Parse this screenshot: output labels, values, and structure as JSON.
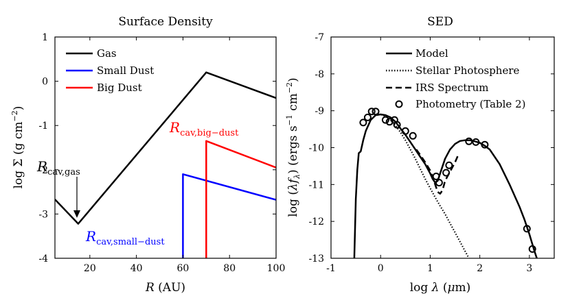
{
  "chart_data": [
    {
      "id": "surface",
      "type": "line",
      "title": "Surface Density",
      "xlabel": "R (AU)",
      "ylabel": "log Σ (g cm⁻²)",
      "xlim": [
        5,
        100
      ],
      "ylim": [
        -4,
        1
      ],
      "xticks": [
        20,
        40,
        60,
        80,
        100
      ],
      "yticks": [
        -4,
        -3,
        -2,
        -1,
        0,
        1
      ],
      "legend_position": "top-left",
      "series": [
        {
          "name": "Gas",
          "color": "#000000",
          "x": [
            5,
            15,
            70,
            100
          ],
          "y": [
            -2.67,
            -3.22,
            0.2,
            -0.38
          ]
        },
        {
          "name": "Small Dust",
          "color": "#0000ff",
          "x": [
            60,
            60,
            100
          ],
          "y": [
            -4,
            -2.1,
            -2.68
          ]
        },
        {
          "name": "Big Dust",
          "color": "#ff0000",
          "x": [
            70,
            70,
            100
          ],
          "y": [
            -4,
            -1.35,
            -1.95
          ]
        }
      ],
      "annotations": [
        {
          "main": "R",
          "sub": "cav,gas",
          "color": "#000000"
        },
        {
          "main": "R",
          "sub": "cav,big−dust",
          "color": "#ff0000"
        },
        {
          "main": "R",
          "sub": "cav,small−dust",
          "color": "#0000ff"
        }
      ]
    },
    {
      "id": "sed",
      "type": "line",
      "title": "SED",
      "xlabel": "log λ (μm)",
      "ylabel": "log (λf_λ) (ergs s⁻¹ cm⁻²)",
      "xlim": [
        -1,
        3.5
      ],
      "ylim": [
        -13,
        -7
      ],
      "xticks": [
        -1,
        0,
        1,
        2,
        3
      ],
      "yticks": [
        -13,
        -12,
        -11,
        -10,
        -9,
        -8,
        -7
      ],
      "legend_position": "top-right",
      "legend": [
        "Model",
        "Stellar Photosphere",
        "IRS Spectrum",
        "Photometry (Table 2)"
      ],
      "series": [
        {
          "name": "Model",
          "style": "solid",
          "x": [
            -0.53,
            -0.5,
            -0.47,
            -0.44,
            -0.4,
            -0.35,
            -0.3,
            -0.2,
            -0.1,
            0.0,
            0.1,
            0.2,
            0.3,
            0.4,
            0.5,
            0.6,
            0.7,
            0.8,
            0.9,
            1.0,
            1.05,
            1.1,
            1.15,
            1.2,
            1.3,
            1.4,
            1.5,
            1.6,
            1.7,
            1.8,
            1.9,
            2.0,
            2.1,
            2.2,
            2.4,
            2.6,
            2.8,
            2.9,
            3.0,
            3.1,
            3.15
          ],
          "y": [
            -13,
            -11.4,
            -10.6,
            -10.15,
            -10.1,
            -9.8,
            -9.55,
            -9.25,
            -9.12,
            -9.1,
            -9.12,
            -9.18,
            -9.3,
            -9.48,
            -9.65,
            -9.85,
            -10.05,
            -10.25,
            -10.45,
            -10.7,
            -10.85,
            -10.95,
            -10.9,
            -10.7,
            -10.3,
            -10.05,
            -9.9,
            -9.82,
            -9.8,
            -9.8,
            -9.83,
            -9.87,
            -9.95,
            -10.05,
            -10.45,
            -11.0,
            -11.6,
            -11.95,
            -12.35,
            -12.8,
            -13
          ]
        },
        {
          "name": "Stellar Photosphere",
          "style": "dotted",
          "x": [
            -0.1,
            0.0,
            0.1,
            0.2,
            0.3,
            0.4,
            0.5,
            0.6,
            0.7,
            0.8,
            0.9,
            1.0,
            1.1,
            1.2,
            1.3,
            1.4,
            1.5,
            1.6,
            1.7,
            1.78
          ],
          "y": [
            -9.1,
            -9.1,
            -9.15,
            -9.25,
            -9.4,
            -9.58,
            -9.8,
            -10.05,
            -10.3,
            -10.58,
            -10.85,
            -11.1,
            -11.35,
            -11.58,
            -11.8,
            -12.05,
            -12.3,
            -12.55,
            -12.8,
            -13
          ]
        },
        {
          "name": "IRS Spectrum",
          "style": "dashed",
          "x": [
            0.72,
            0.8,
            0.9,
            1.0,
            1.05,
            1.1,
            1.15,
            1.2,
            1.25,
            1.3,
            1.4,
            1.5,
            1.58
          ],
          "y": [
            -10.05,
            -10.2,
            -10.4,
            -10.62,
            -10.8,
            -11.0,
            -11.2,
            -11.25,
            -11.15,
            -10.9,
            -10.65,
            -10.4,
            -10.15
          ]
        }
      ],
      "photometry": {
        "x": [
          -0.35,
          -0.26,
          -0.18,
          -0.1,
          0.1,
          0.18,
          0.28,
          0.33,
          0.5,
          0.65,
          1.12,
          1.18,
          1.32,
          1.38,
          1.78,
          1.92,
          2.1,
          2.95,
          3.06
        ],
        "y": [
          -9.32,
          -9.18,
          -9.02,
          -9.02,
          -9.25,
          -9.3,
          -9.25,
          -9.38,
          -9.55,
          -9.68,
          -10.78,
          -10.95,
          -10.68,
          -10.48,
          -9.83,
          -9.85,
          -9.92,
          -12.2,
          -12.75
        ]
      }
    }
  ]
}
